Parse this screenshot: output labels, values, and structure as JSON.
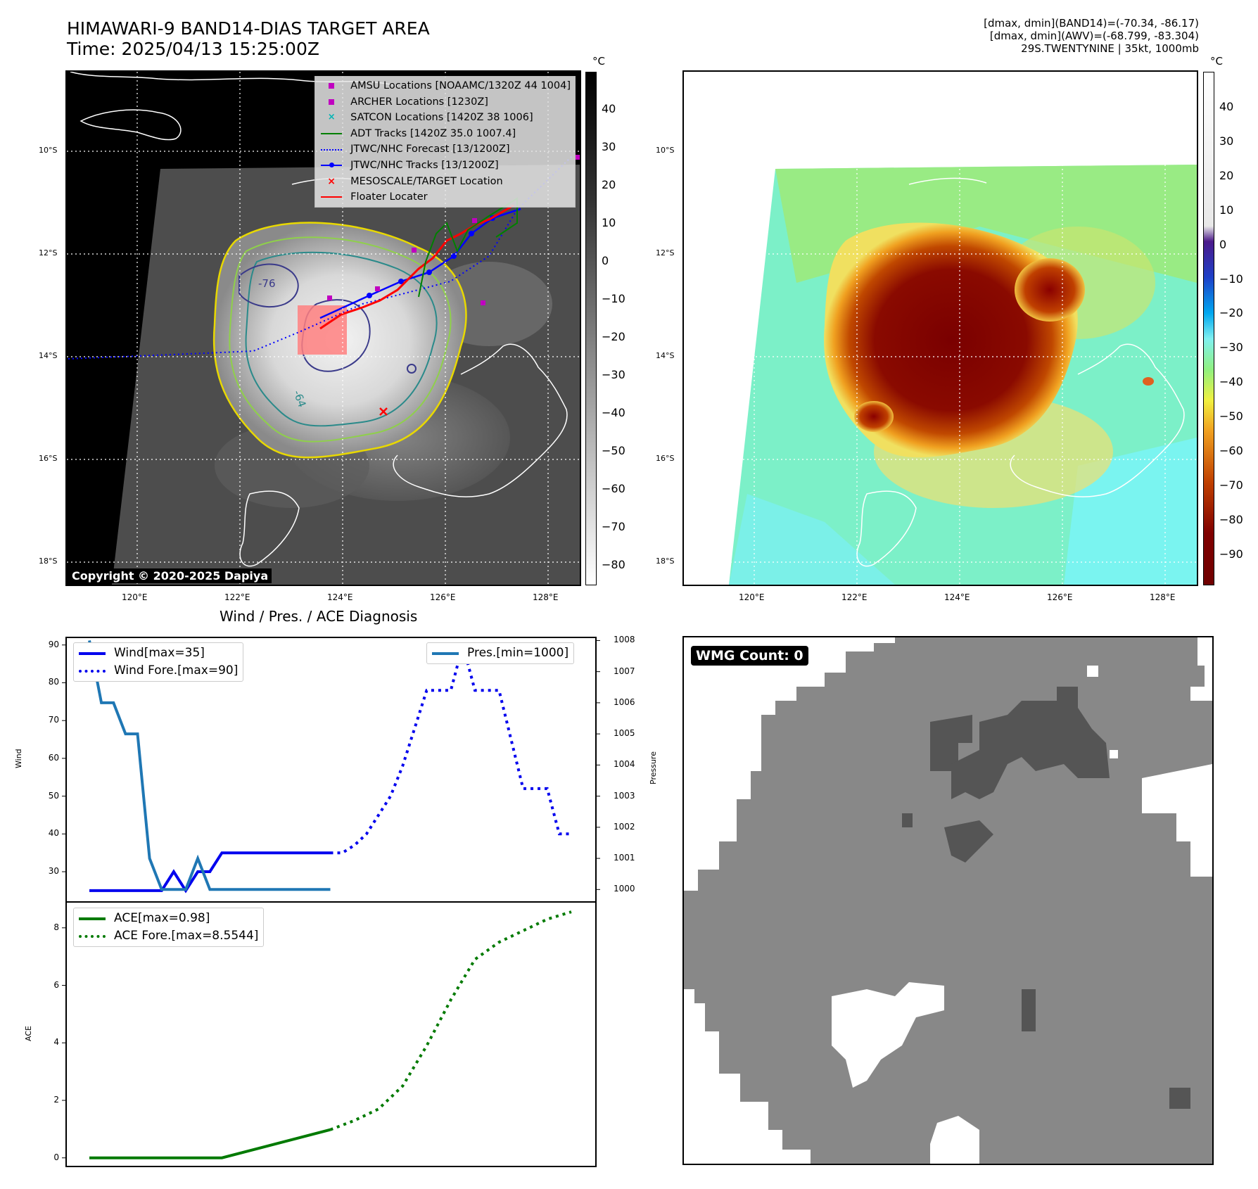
{
  "header": {
    "title": "HIMAWARI-9 BAND14-DIAS TARGET AREA",
    "time": "Time: 2025/04/13 15:25:00Z",
    "dmax_band14": "[dmax, dmin](BAND14)=(-70.34, -86.17)",
    "dmax_awv": "[dmax, dmin](AWV)=(-68.799, -83.304)",
    "storm": "29S.TWENTYNINE | 35kt, 1000mb"
  },
  "map": {
    "lat_labels": [
      "10°S",
      "12°S",
      "14°S",
      "16°S",
      "18°S"
    ],
    "lon_labels": [
      "120°E",
      "122°E",
      "124°E",
      "126°E",
      "128°E"
    ],
    "contour_labels": [
      "-76",
      "-64"
    ],
    "copyright": "Copyright © 2020-2025 Dapiya",
    "legend": [
      {
        "label": "AMSU Locations [NOAAMC/1320Z 44 1004]",
        "color": "#c000c0",
        "symbol": "square"
      },
      {
        "label": "ARCHER Locations [1230Z]",
        "color": "#c000c0",
        "symbol": "square"
      },
      {
        "label": "SATCON Locations [1420Z 38 1006]",
        "color": "#00b4b4",
        "symbol": "x"
      },
      {
        "label": "ADT Tracks [1420Z 35.0 1007.4]",
        "color": "#008000",
        "symbol": "line"
      },
      {
        "label": "JTWC/NHC Forecast [13/1200Z]",
        "color": "#0000ff",
        "symbol": "dotted"
      },
      {
        "label": "JTWC/NHC Tracks [13/1200Z]",
        "color": "#0000ff",
        "symbol": "line-dot"
      },
      {
        "label": "MESOSCALE/TARGET Location",
        "color": "#ff0000",
        "symbol": "x"
      },
      {
        "label": "Floater Locater",
        "color": "#ff0000",
        "symbol": "line"
      }
    ]
  },
  "colorbar_gray": {
    "unit": "°C",
    "ticks": [
      "40",
      "30",
      "20",
      "10",
      "0",
      "−10",
      "−20",
      "−30",
      "−40",
      "−50",
      "−60",
      "−70",
      "−80"
    ]
  },
  "colorbar_color": {
    "unit": "°C",
    "ticks": [
      "40",
      "30",
      "20",
      "10",
      "0",
      "−10",
      "−20",
      "−30",
      "−40",
      "−50",
      "−60",
      "−70",
      "−80",
      "−90"
    ]
  },
  "wmg": {
    "label": "WMG Count: 0"
  },
  "colors": {
    "wind": "#0000ee",
    "pressure": "#1f77b4",
    "ace": "#007a00"
  },
  "chart_data": [
    {
      "type": "line",
      "title": "Wind / Pres. / ACE Diagnosis",
      "ylabel": "Wind",
      "ylim": [
        22,
        92
      ],
      "x_range": [
        0,
        40
      ],
      "yticks": [
        "90",
        "80",
        "70",
        "60",
        "50",
        "40",
        "30"
      ],
      "series": [
        {
          "name": "Wind[max=35]",
          "style": "solid",
          "color": "#0000ee",
          "x": [
            0,
            1,
            2,
            3,
            4,
            5,
            6,
            7,
            8,
            9,
            10,
            11,
            12,
            13,
            14,
            15,
            16,
            17,
            18,
            19,
            20
          ],
          "values": [
            25,
            25,
            25,
            25,
            25,
            25,
            25,
            30,
            25,
            30,
            30,
            35,
            35,
            35,
            35,
            35,
            35,
            35,
            35,
            35,
            35
          ]
        },
        {
          "name": "Wind Fore.[max=90]",
          "style": "dotted",
          "color": "#0000ee",
          "x": [
            20,
            21,
            22,
            23,
            24,
            25,
            26,
            27,
            28,
            29,
            30,
            31,
            32,
            33,
            34,
            35,
            36,
            37,
            38,
            39,
            40
          ],
          "values": [
            35,
            35,
            37,
            40,
            45,
            50,
            58,
            68,
            78,
            78,
            78,
            90,
            78,
            78,
            78,
            65,
            52,
            52,
            52,
            40,
            40
          ]
        }
      ]
    },
    {
      "type": "line",
      "ylabel": "Pressure",
      "ylim": [
        999.6,
        1008.1
      ],
      "yticks": [
        "1008",
        "1007",
        "1006",
        "1005",
        "1004",
        "1003",
        "1002",
        "1001",
        "1000"
      ],
      "series": [
        {
          "name": "Pres.[min=1000]",
          "style": "solid",
          "color": "#1f77b4",
          "x": [
            0,
            1,
            2,
            3,
            4,
            5,
            6,
            7,
            8,
            9,
            10,
            11,
            12,
            13,
            14,
            15,
            16,
            17,
            18,
            19,
            20
          ],
          "values": [
            1008,
            1006,
            1006,
            1005,
            1005,
            1001,
            1000,
            1000,
            1000,
            1001,
            1000,
            1000,
            1000,
            1000,
            1000,
            1000,
            1000,
            1000,
            1000,
            1000,
            1000
          ]
        }
      ]
    },
    {
      "type": "line",
      "ylabel": "ACE",
      "ylim": [
        -0.3,
        8.9
      ],
      "yticks": [
        "8",
        "6",
        "4",
        "2",
        "0"
      ],
      "series": [
        {
          "name": "ACE[max=0.98]",
          "style": "solid",
          "color": "#007a00",
          "x": [
            0,
            5,
            10,
            11,
            20
          ],
          "values": [
            0,
            0,
            0,
            0,
            0.98
          ]
        },
        {
          "name": "ACE Fore.[max=8.5544]",
          "style": "dotted",
          "color": "#007a00",
          "x": [
            20,
            22,
            24,
            26,
            28,
            30,
            32,
            34,
            36,
            38,
            40
          ],
          "values": [
            0.98,
            1.3,
            1.7,
            2.5,
            3.9,
            5.5,
            6.9,
            7.5,
            7.9,
            8.3,
            8.5544
          ]
        }
      ]
    }
  ]
}
